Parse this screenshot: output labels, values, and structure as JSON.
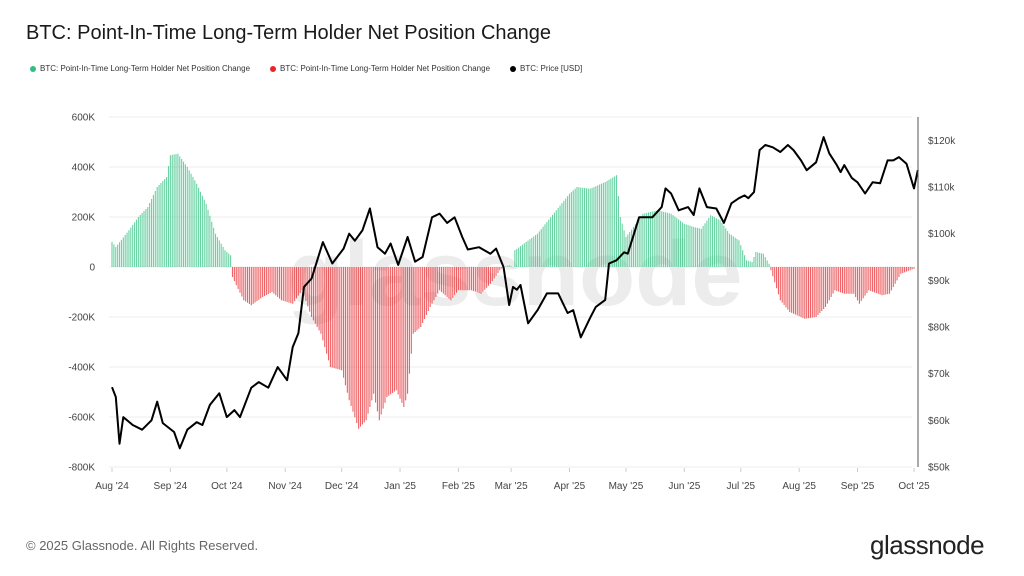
{
  "title": "BTC: Point-In-Time Long-Term Holder Net Position Change",
  "legend": [
    {
      "label": "BTC: Point-In-Time Long-Term Holder Net Position Change",
      "color": "#2fbf7f"
    },
    {
      "label": "BTC: Point-In-Time Long-Term Holder Net Position Change",
      "color": "#e8262a"
    },
    {
      "label": "BTC: Price [USD]",
      "color": "#000000"
    }
  ],
  "footer": "© 2025 Glassnode. All Rights Reserved.",
  "logo": "glassnode",
  "watermark": "glassnode",
  "chart_data": {
    "type": "bar",
    "title": "BTC: Point-In-Time Long-Term Holder Net Position Change",
    "grid": true,
    "legend_position": "top-left",
    "x_ticks": [
      "Aug '24",
      "Sep '24",
      "Oct '24",
      "Nov '24",
      "Dec '24",
      "Jan '25",
      "Feb '25",
      "Mar '25",
      "Apr '25",
      "May '25",
      "Jun '25",
      "Jul '25",
      "Aug '25",
      "Sep '25",
      "Oct '25"
    ],
    "x_range": [
      "2024-08-01",
      "2025-10-01"
    ],
    "y_left": {
      "range": [
        -800000,
        600000
      ],
      "ticks": [
        "600K",
        "400K",
        "200K",
        "0",
        "-200K",
        "-400K",
        "-600K",
        "-800K"
      ],
      "tick_values": [
        600000,
        400000,
        200000,
        0,
        -200000,
        -400000,
        -600000,
        -800000
      ]
    },
    "y_right": {
      "range": [
        50000,
        125000
      ],
      "ticks": [
        "$120k",
        "$110k",
        "$100k",
        "$90k",
        "$80k",
        "$70k",
        "$60k",
        "$50k"
      ],
      "tick_values": [
        120000,
        110000,
        100000,
        90000,
        80000,
        70000,
        60000,
        50000
      ]
    },
    "positive_color": "#2fbf7f",
    "negative_color": "#e8262a",
    "price_color": "#000000",
    "net_position_change_k": [
      [
        "2024-08-01",
        100
      ],
      [
        "2024-08-03",
        80
      ],
      [
        "2024-08-10",
        147
      ],
      [
        "2024-08-15",
        200
      ],
      [
        "2024-08-20",
        240
      ],
      [
        "2024-08-25",
        320
      ],
      [
        "2024-08-30",
        360
      ],
      [
        "2024-09-01",
        447
      ],
      [
        "2024-09-05",
        453
      ],
      [
        "2024-09-10",
        400
      ],
      [
        "2024-09-15",
        333
      ],
      [
        "2024-09-20",
        253
      ],
      [
        "2024-09-25",
        133
      ],
      [
        "2024-09-30",
        67
      ],
      [
        "2024-10-03",
        47
      ],
      [
        "2024-10-04",
        -40
      ],
      [
        "2024-10-06",
        -73
      ],
      [
        "2024-10-10",
        -133
      ],
      [
        "2024-10-14",
        -153
      ],
      [
        "2024-10-20",
        -120
      ],
      [
        "2024-10-25",
        -100
      ],
      [
        "2024-10-30",
        -133
      ],
      [
        "2024-11-05",
        -147
      ],
      [
        "2024-11-10",
        -93
      ],
      [
        "2024-11-15",
        -200
      ],
      [
        "2024-11-20",
        -267
      ],
      [
        "2024-11-25",
        -400
      ],
      [
        "2024-12-01",
        -413
      ],
      [
        "2024-12-05",
        -533
      ],
      [
        "2024-12-10",
        -647
      ],
      [
        "2024-12-14",
        -613
      ],
      [
        "2024-12-18",
        -507
      ],
      [
        "2024-12-21",
        -613
      ],
      [
        "2024-12-25",
        -520
      ],
      [
        "2024-12-30",
        -493
      ],
      [
        "2025-01-03",
        -560
      ],
      [
        "2025-01-05",
        -507
      ],
      [
        "2025-01-08",
        -267
      ],
      [
        "2025-01-12",
        -240
      ],
      [
        "2025-01-17",
        -160
      ],
      [
        "2025-01-22",
        -93
      ],
      [
        "2025-01-28",
        -133
      ],
      [
        "2025-02-01",
        -93
      ],
      [
        "2025-02-08",
        -93
      ],
      [
        "2025-02-13",
        -107
      ],
      [
        "2025-02-18",
        -67
      ],
      [
        "2025-02-23",
        -13
      ],
      [
        "2025-02-25",
        0
      ],
      [
        "2025-02-28",
        7
      ],
      [
        "2025-03-02",
        0
      ],
      [
        "2025-03-03",
        67
      ],
      [
        "2025-03-15",
        133
      ],
      [
        "2025-03-25",
        227
      ],
      [
        "2025-04-01",
        293
      ],
      [
        "2025-04-05",
        320
      ],
      [
        "2025-04-12",
        313
      ],
      [
        "2025-04-20",
        340
      ],
      [
        "2025-04-26",
        367
      ],
      [
        "2025-04-28",
        200
      ],
      [
        "2025-05-01",
        120
      ],
      [
        "2025-05-05",
        160
      ],
      [
        "2025-05-10",
        213
      ],
      [
        "2025-05-18",
        227
      ],
      [
        "2025-05-25",
        213
      ],
      [
        "2025-06-01",
        173
      ],
      [
        "2025-06-06",
        160
      ],
      [
        "2025-06-10",
        153
      ],
      [
        "2025-06-15",
        207
      ],
      [
        "2025-06-20",
        187
      ],
      [
        "2025-06-25",
        133
      ],
      [
        "2025-06-30",
        107
      ],
      [
        "2025-07-04",
        27
      ],
      [
        "2025-07-07",
        20
      ],
      [
        "2025-07-09",
        60
      ],
      [
        "2025-07-13",
        53
      ],
      [
        "2025-07-16",
        13
      ],
      [
        "2025-07-17",
        -13
      ],
      [
        "2025-07-22",
        -133
      ],
      [
        "2025-07-27",
        -180
      ],
      [
        "2025-08-04",
        -207
      ],
      [
        "2025-08-10",
        -200
      ],
      [
        "2025-08-15",
        -160
      ],
      [
        "2025-08-20",
        -93
      ],
      [
        "2025-08-25",
        -107
      ],
      [
        "2025-08-30",
        -107
      ],
      [
        "2025-09-02",
        -147
      ],
      [
        "2025-09-07",
        -93
      ],
      [
        "2025-09-14",
        -113
      ],
      [
        "2025-09-18",
        -107
      ],
      [
        "2025-09-24",
        -27
      ],
      [
        "2025-10-01",
        -7
      ]
    ],
    "price_usd_k": [
      [
        "2024-08-01",
        67.1
      ],
      [
        "2024-08-03",
        65
      ],
      [
        "2024-08-05",
        55
      ],
      [
        "2024-08-07",
        60.7
      ],
      [
        "2024-08-12",
        59
      ],
      [
        "2024-08-17",
        58
      ],
      [
        "2024-08-22",
        60
      ],
      [
        "2024-08-25",
        64
      ],
      [
        "2024-08-28",
        59.4
      ],
      [
        "2024-09-03",
        57.5
      ],
      [
        "2024-09-06",
        54
      ],
      [
        "2024-09-10",
        58
      ],
      [
        "2024-09-15",
        59.6
      ],
      [
        "2024-09-18",
        59
      ],
      [
        "2024-09-22",
        63.3
      ],
      [
        "2024-09-27",
        65.8
      ],
      [
        "2024-10-01",
        60.7
      ],
      [
        "2024-10-05",
        62.2
      ],
      [
        "2024-10-08",
        60.7
      ],
      [
        "2024-10-14",
        67
      ],
      [
        "2024-10-18",
        68.2
      ],
      [
        "2024-10-23",
        67
      ],
      [
        "2024-10-28",
        71.4
      ],
      [
        "2024-11-02",
        68.6
      ],
      [
        "2024-11-05",
        75.7
      ],
      [
        "2024-11-08",
        78.7
      ],
      [
        "2024-11-11",
        88.6
      ],
      [
        "2024-11-15",
        90.4
      ],
      [
        "2024-11-21",
        98.2
      ],
      [
        "2024-11-26",
        93.6
      ],
      [
        "2024-12-02",
        96.8
      ],
      [
        "2024-12-05",
        100
      ],
      [
        "2024-12-08",
        98.5
      ],
      [
        "2024-12-12",
        100.7
      ],
      [
        "2024-12-16",
        105.4
      ],
      [
        "2024-12-20",
        97.1
      ],
      [
        "2024-12-24",
        95.7
      ],
      [
        "2024-12-27",
        97.9
      ],
      [
        "2024-12-31",
        93.3
      ],
      [
        "2025-01-05",
        99.3
      ],
      [
        "2025-01-09",
        94
      ],
      [
        "2025-01-13",
        95
      ],
      [
        "2025-01-18",
        103.5
      ],
      [
        "2025-01-22",
        104.3
      ],
      [
        "2025-01-26",
        102.3
      ],
      [
        "2025-01-30",
        103.5
      ],
      [
        "2025-02-03",
        99.3
      ],
      [
        "2025-02-06",
        96.6
      ],
      [
        "2025-02-12",
        97.1
      ],
      [
        "2025-02-18",
        95.7
      ],
      [
        "2025-02-21",
        96.8
      ],
      [
        "2025-02-25",
        92.8
      ],
      [
        "2025-02-28",
        84.7
      ],
      [
        "2025-03-02",
        88.6
      ],
      [
        "2025-03-04",
        88
      ],
      [
        "2025-03-06",
        89
      ],
      [
        "2025-03-10",
        80.8
      ],
      [
        "2025-03-15",
        83.6
      ],
      [
        "2025-03-20",
        87.2
      ],
      [
        "2025-03-26",
        87.2
      ],
      [
        "2025-03-31",
        83
      ],
      [
        "2025-04-03",
        83.6
      ],
      [
        "2025-04-07",
        77.8
      ],
      [
        "2025-04-12",
        82
      ],
      [
        "2025-04-15",
        84.3
      ],
      [
        "2025-04-20",
        85.8
      ],
      [
        "2025-04-22",
        93.6
      ],
      [
        "2025-04-26",
        94.3
      ],
      [
        "2025-04-30",
        96
      ],
      [
        "2025-05-02",
        95.7
      ],
      [
        "2025-05-08",
        103.5
      ],
      [
        "2025-05-15",
        103.5
      ],
      [
        "2025-05-20",
        105.7
      ],
      [
        "2025-05-22",
        109.7
      ],
      [
        "2025-05-25",
        108.6
      ],
      [
        "2025-05-29",
        105
      ],
      [
        "2025-06-03",
        105.7
      ],
      [
        "2025-06-06",
        104
      ],
      [
        "2025-06-09",
        109.7
      ],
      [
        "2025-06-13",
        105.7
      ],
      [
        "2025-06-18",
        105.4
      ],
      [
        "2025-06-22",
        102.3
      ],
      [
        "2025-06-26",
        106.5
      ],
      [
        "2025-06-30",
        107.6
      ],
      [
        "2025-07-03",
        108.2
      ],
      [
        "2025-07-05",
        107.6
      ],
      [
        "2025-07-08",
        108.9
      ],
      [
        "2025-07-11",
        117.9
      ],
      [
        "2025-07-14",
        119
      ],
      [
        "2025-07-18",
        118.5
      ],
      [
        "2025-07-22",
        117.5
      ],
      [
        "2025-07-26",
        119
      ],
      [
        "2025-07-29",
        117.9
      ],
      [
        "2025-08-02",
        115.7
      ],
      [
        "2025-08-05",
        113.6
      ],
      [
        "2025-08-10",
        115.3
      ],
      [
        "2025-08-14",
        120.7
      ],
      [
        "2025-08-17",
        117.2
      ],
      [
        "2025-08-21",
        114.7
      ],
      [
        "2025-08-23",
        113.2
      ],
      [
        "2025-08-25",
        114.7
      ],
      [
        "2025-08-29",
        111.9
      ],
      [
        "2025-09-01",
        111
      ],
      [
        "2025-09-05",
        108.6
      ],
      [
        "2025-09-09",
        111
      ],
      [
        "2025-09-13",
        110.8
      ],
      [
        "2025-09-17",
        115.7
      ],
      [
        "2025-09-20",
        115.7
      ],
      [
        "2025-09-23",
        116.4
      ],
      [
        "2025-09-27",
        115
      ],
      [
        "2025-10-01",
        109.7
      ],
      [
        "2025-10-03",
        113.6
      ]
    ]
  }
}
